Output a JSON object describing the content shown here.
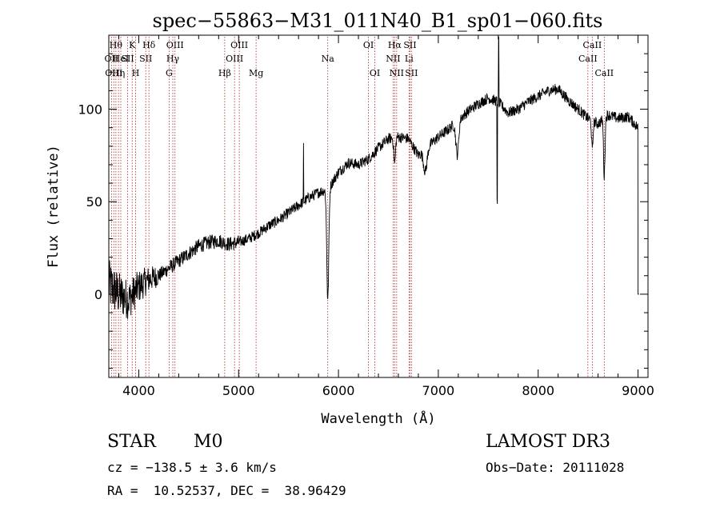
{
  "chart_data": {
    "type": "line",
    "title": "spec−55863−M31_011N40_B1_sp01−060.fits",
    "xlabel": "Wavelength (Å)",
    "ylabel": "Flux (relative)",
    "xlim": [
      3700,
      9100
    ],
    "ylim": [
      -45,
      140
    ],
    "xticks": [
      {
        "value": 4000,
        "label": "4000"
      },
      {
        "value": 5000,
        "label": "5000"
      },
      {
        "value": 6000,
        "label": "6000"
      },
      {
        "value": 7000,
        "label": "7000"
      },
      {
        "value": 8000,
        "label": "8000"
      },
      {
        "value": 9000,
        "label": "9000"
      }
    ],
    "yticks": [
      {
        "value": 0,
        "label": "0"
      },
      {
        "value": 50,
        "label": "50"
      },
      {
        "value": 100,
        "label": "100"
      }
    ],
    "line_color": "#000000",
    "marker_color": "#b22222",
    "lines": [
      {
        "wave": 3727,
        "label": "OII",
        "row": 1
      },
      {
        "wave": 3750,
        "label": "OIII",
        "row": 2
      },
      {
        "wave": 3771,
        "label": "Hθ",
        "row": 0
      },
      {
        "wave": 3797,
        "label": "Hη",
        "row": 2
      },
      {
        "wave": 3820,
        "label": "HeI",
        "row": 1
      },
      {
        "wave": 3889,
        "label": "SII",
        "row": 1
      },
      {
        "wave": 3934,
        "label": "K",
        "row": 0
      },
      {
        "wave": 3969,
        "label": "H",
        "row": 2
      },
      {
        "wave": 4102,
        "label": "Hδ",
        "row": 0
      },
      {
        "wave": 4070,
        "label": "SII",
        "row": 1
      },
      {
        "wave": 4304,
        "label": "G",
        "row": 2
      },
      {
        "wave": 4341,
        "label": "Hγ",
        "row": 1
      },
      {
        "wave": 4363,
        "label": "OIII",
        "row": 0
      },
      {
        "wave": 4861,
        "label": "Hβ",
        "row": 2
      },
      {
        "wave": 4959,
        "label": "OIII",
        "row": 1
      },
      {
        "wave": 5007,
        "label": "OIII",
        "row": 0
      },
      {
        "wave": 5175,
        "label": "Mg",
        "row": 2
      },
      {
        "wave": 5893,
        "label": "Na",
        "row": 1
      },
      {
        "wave": 6300,
        "label": "OI",
        "row": 0
      },
      {
        "wave": 6364,
        "label": "OI",
        "row": 2
      },
      {
        "wave": 6548,
        "label": "NII",
        "row": 1
      },
      {
        "wave": 6563,
        "label": "Hα",
        "row": 0
      },
      {
        "wave": 6583,
        "label": "NII",
        "row": 2
      },
      {
        "wave": 6707,
        "label": "Li",
        "row": 1
      },
      {
        "wave": 6716,
        "label": "SII",
        "row": 0
      },
      {
        "wave": 6731,
        "label": "SII",
        "row": 2
      },
      {
        "wave": 8498,
        "label": "CaII",
        "row": 1
      },
      {
        "wave": 8542,
        "label": "CaII",
        "row": 0
      },
      {
        "wave": 8662,
        "label": "CaII",
        "row": 2
      }
    ],
    "spectrum": {
      "description": "continuum knots (wavelength, flux) with noise and absorption features",
      "knots": [
        [
          3700,
          5
        ],
        [
          3800,
          0
        ],
        [
          3900,
          -3
        ],
        [
          4000,
          4
        ],
        [
          4100,
          8
        ],
        [
          4200,
          10
        ],
        [
          4300,
          14
        ],
        [
          4400,
          18
        ],
        [
          4500,
          22
        ],
        [
          4600,
          26
        ],
        [
          4700,
          28
        ],
        [
          4800,
          29
        ],
        [
          4900,
          27
        ],
        [
          5000,
          28
        ],
        [
          5100,
          30
        ],
        [
          5200,
          33
        ],
        [
          5300,
          37
        ],
        [
          5400,
          40
        ],
        [
          5500,
          44
        ],
        [
          5600,
          48
        ],
        [
          5700,
          52
        ],
        [
          5800,
          55
        ],
        [
          5900,
          57
        ],
        [
          6000,
          66
        ],
        [
          6100,
          71
        ],
        [
          6200,
          70
        ],
        [
          6300,
          73
        ],
        [
          6400,
          79
        ],
        [
          6500,
          84
        ],
        [
          6600,
          85
        ],
        [
          6700,
          84
        ],
        [
          6800,
          75
        ],
        [
          6900,
          80
        ],
        [
          7000,
          85
        ],
        [
          7100,
          89
        ],
        [
          7200,
          94
        ],
        [
          7300,
          99
        ],
        [
          7400,
          103
        ],
        [
          7500,
          106
        ],
        [
          7600,
          104
        ],
        [
          7700,
          98
        ],
        [
          7800,
          100
        ],
        [
          7900,
          104
        ],
        [
          8000,
          107
        ],
        [
          8100,
          110
        ],
        [
          8200,
          111
        ],
        [
          8300,
          105
        ],
        [
          8400,
          100
        ],
        [
          8500,
          95
        ],
        [
          8600,
          92
        ],
        [
          8700,
          97
        ],
        [
          8800,
          95
        ],
        [
          8900,
          96
        ],
        [
          9000,
          90
        ]
      ],
      "dips": [
        {
          "wave": 5893,
          "depth": 60,
          "width": 14
        },
        {
          "wave": 6563,
          "depth": 14,
          "width": 12
        },
        {
          "wave": 6870,
          "depth": 12,
          "width": 25
        },
        {
          "wave": 7190,
          "depth": 18,
          "width": 20
        },
        {
          "wave": 8542,
          "depth": 16,
          "width": 10
        },
        {
          "wave": 8662,
          "depth": 32,
          "width": 10
        }
      ],
      "spikes": [
        {
          "wave": 7605,
          "height": 70
        },
        {
          "wave": 7590,
          "height": -55
        },
        {
          "wave": 5650,
          "height": 30
        }
      ]
    }
  },
  "info": {
    "object_class": "STAR",
    "subclass": "M0",
    "survey": "LAMOST DR3",
    "cz": "cz = −138.5 ± 3.6 km/s",
    "obs_date": "Obs−Date: 20111028",
    "radec": "RA =  10.52537, DEC =  38.96429"
  }
}
